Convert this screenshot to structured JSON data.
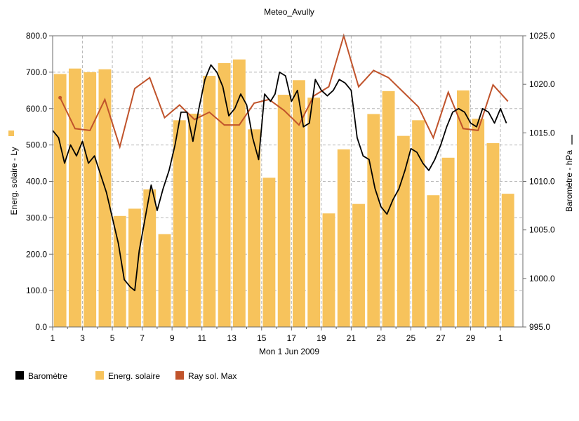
{
  "chart_data": {
    "type": "bar+line",
    "title": "Meteo_Avully",
    "xlabel": "Mon 1 Jun 2009",
    "ylabel_left": "Energ. solaire - Ly",
    "ylabel_right": "Baromètre - hPa",
    "ylim_left": [
      0,
      800
    ],
    "ylim_right": [
      995,
      1025
    ],
    "yticks_left": [
      "0.0",
      "100.0",
      "200.0",
      "300.0",
      "400.0",
      "500.0",
      "600.0",
      "700.0",
      "800.0"
    ],
    "yticks_right": [
      "995.0",
      "1000.0",
      "1005.0",
      "1010.0",
      "1015.0",
      "1020.0",
      "1025.0"
    ],
    "xticks": [
      "1",
      "3",
      "5",
      "7",
      "9",
      "11",
      "13",
      "15",
      "17",
      "19",
      "21",
      "23",
      "25",
      "27",
      "29",
      "1"
    ],
    "grid": true,
    "legend_position": "bottom-left",
    "legend": [
      "Baromètre",
      "Energ. solaire",
      "Ray sol. Max"
    ],
    "colors": {
      "bar": "#f7c35c",
      "barometer": "#000000",
      "ray": "#c0532b",
      "grid": "#b8b8b8"
    },
    "bars": {
      "name": "Energ. solaire",
      "day": [
        1,
        2,
        3,
        4,
        5,
        6,
        7,
        8,
        9,
        10,
        11,
        12,
        13,
        14,
        15,
        16,
        17,
        18,
        19,
        20,
        21,
        22,
        23,
        24,
        25,
        26,
        27,
        28,
        29,
        30,
        31
      ],
      "values": [
        695,
        710,
        700,
        708,
        305,
        325,
        378,
        255,
        568,
        586,
        690,
        725,
        735,
        543,
        410,
        638,
        678,
        630,
        312,
        488,
        338,
        585,
        648,
        525,
        568,
        362,
        465,
        650,
        572,
        505,
        366
      ]
    },
    "ray_max": {
      "name": "Ray sol. Max",
      "day": [
        1.5,
        2.5,
        3.5,
        4.5,
        5.5,
        6.5,
        7.5,
        8.5,
        9.5,
        10.5,
        11.5,
        12.5,
        13.5,
        14.5,
        15.5,
        16.5,
        17.5,
        18.5,
        19.5,
        20.5,
        21.5,
        22.5,
        23.5,
        24.5,
        25.5,
        26.5,
        27.5,
        28.5,
        29.5,
        30.5,
        31.5
      ],
      "values": [
        630,
        545,
        540,
        625,
        495,
        655,
        685,
        575,
        610,
        570,
        590,
        555,
        555,
        615,
        625,
        595,
        555,
        635,
        660,
        800,
        660,
        705,
        685,
        645,
        605,
        520,
        645,
        545,
        540,
        665,
        620
      ]
    },
    "barometer": {
      "name": "Baromètre",
      "day": [
        1,
        1.4,
        1.8,
        2.2,
        2.6,
        3,
        3.4,
        3.8,
        4.2,
        4.6,
        5,
        5.4,
        5.8,
        6.2,
        6.5,
        6.8,
        7.2,
        7.6,
        8,
        8.4,
        8.8,
        9.2,
        9.6,
        10,
        10.4,
        10.8,
        11.2,
        11.6,
        12,
        12.4,
        12.8,
        13.2,
        13.6,
        14,
        14.4,
        14.8,
        15.2,
        15.6,
        15.9,
        16.2,
        16.6,
        17,
        17.4,
        17.8,
        18.2,
        18.6,
        19,
        19.4,
        19.8,
        20.2,
        20.6,
        21,
        21.4,
        21.8,
        22.2,
        22.6,
        23,
        23.4,
        23.8,
        24.2,
        24.6,
        25,
        25.4,
        25.8,
        26.2,
        26.6,
        27,
        27.4,
        27.8,
        28.2,
        28.6,
        29,
        29.4,
        29.8,
        30.2,
        30.6,
        31,
        31.4
      ],
      "values": [
        540,
        520,
        450,
        500,
        470,
        510,
        450,
        470,
        420,
        370,
        300,
        230,
        130,
        110,
        100,
        210,
        300,
        390,
        320,
        380,
        430,
        500,
        590,
        590,
        510,
        600,
        680,
        720,
        700,
        660,
        580,
        600,
        640,
        610,
        520,
        460,
        640,
        620,
        640,
        700,
        690,
        620,
        650,
        550,
        560,
        680,
        650,
        635,
        650,
        680,
        670,
        650,
        520,
        470,
        460,
        380,
        330,
        310,
        350,
        380,
        430,
        490,
        480,
        450,
        430,
        460,
        500,
        550,
        590,
        600,
        590,
        560,
        550,
        600,
        590,
        560,
        600,
        560
      ]
    }
  }
}
